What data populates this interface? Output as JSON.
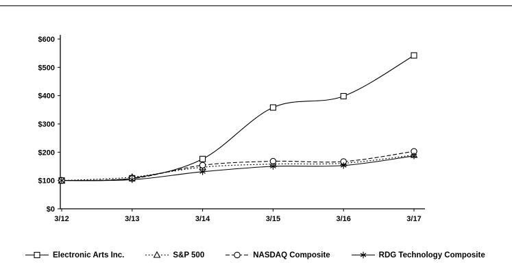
{
  "chart_data": {
    "type": "line",
    "title": "",
    "xlabel": "",
    "ylabel": "",
    "x_categories": [
      "3/12",
      "3/13",
      "3/14",
      "3/15",
      "3/16",
      "3/17"
    ],
    "y_tick_labels": [
      "$0",
      "$100",
      "$200",
      "$300",
      "$400",
      "$500",
      "$600"
    ],
    "y_tick_values": [
      0,
      100,
      200,
      300,
      400,
      500,
      600
    ],
    "ylim": [
      0,
      600
    ],
    "grid": false,
    "legend_position": "bottom",
    "line_color": "#000000",
    "background": "#ffffff",
    "series": [
      {
        "name": "Electronic Arts Inc.",
        "marker": "square",
        "line_style": "solid",
        "color": "#000000",
        "values": [
          100,
          108,
          176,
          358,
          398,
          542
        ]
      },
      {
        "name": "S&P 500",
        "marker": "triangle",
        "line_style": "dotted",
        "color": "#000000",
        "values": [
          100,
          112,
          147,
          158,
          161,
          190
        ]
      },
      {
        "name": "NASDAQ Composite",
        "marker": "circle",
        "line_style": "dashed",
        "color": "#000000",
        "values": [
          100,
          107,
          154,
          168,
          167,
          203
        ]
      },
      {
        "name": "RDG Technology Composite",
        "marker": "asterisk",
        "line_style": "solid",
        "color": "#000000",
        "values": [
          100,
          103,
          131,
          150,
          153,
          187
        ]
      }
    ]
  }
}
